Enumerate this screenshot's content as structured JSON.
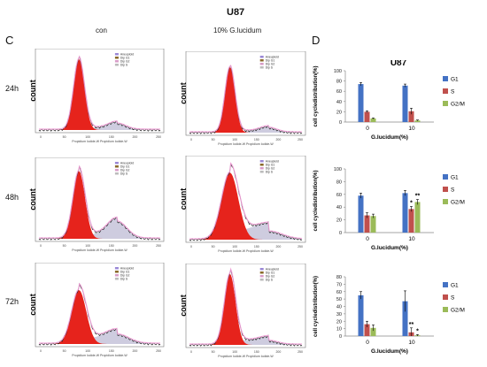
{
  "figure": {
    "title": "U87",
    "panel_c_label": "C",
    "panel_d_label": "D",
    "col_labels": [
      "con",
      "10% G.lucidum"
    ],
    "row_labels": [
      "24h",
      "48h",
      "72h"
    ],
    "flow_ylabel": "count",
    "flow_xlabel": "Propidium Iodide-W  Propidium Iodide-W",
    "flow_xticks": [
      "0",
      "50",
      "100",
      "150",
      "200",
      "250"
    ],
    "flow_legend": [
      "Aneuploid",
      "Dip G1",
      "Dip G2",
      "Dip S"
    ],
    "colors": {
      "red": "#e6231c",
      "pink": "#f2a0d8",
      "bar_blue": "#4472c4",
      "bar_red": "#c0504d",
      "bar_green": "#9bbb59"
    }
  },
  "chart_data": [
    {
      "type": "bar",
      "title": "U87",
      "categories": [
        "0",
        "10"
      ],
      "series": [
        {
          "name": "G1",
          "values": [
            74,
            71
          ]
        },
        {
          "name": "S",
          "values": [
            20,
            21
          ]
        },
        {
          "name": "G2/M",
          "values": [
            7,
            3
          ]
        }
      ],
      "errors": [
        [
          3,
          3
        ],
        [
          2,
          6
        ],
        [
          1,
          1
        ]
      ],
      "annotations": [],
      "xlabel": "G.lucidum(%)",
      "ylabel": "cell cycledistribution(%)",
      "ylim": [
        0,
        100
      ],
      "yticks": [
        0,
        20,
        40,
        60,
        80,
        100
      ],
      "legend": "right"
    },
    {
      "type": "bar",
      "title": "",
      "categories": [
        "0",
        "10"
      ],
      "series": [
        {
          "name": "G1",
          "values": [
            58,
            62
          ]
        },
        {
          "name": "S",
          "values": [
            27,
            37
          ]
        },
        {
          "name": "G2/M",
          "values": [
            26,
            48
          ]
        }
      ],
      "errors": [
        [
          4,
          4
        ],
        [
          4,
          4
        ],
        [
          3,
          4
        ]
      ],
      "annotations": [
        {
          "category": "10",
          "series": "S",
          "text": "*"
        },
        {
          "category": "10",
          "series": "G2/M",
          "text": "**"
        }
      ],
      "xlabel": "G.lucidum(%)",
      "ylabel": "cell cycledistribution(%)",
      "ylim": [
        0,
        100
      ],
      "yticks": [
        0,
        20,
        40,
        60,
        80,
        100
      ],
      "legend": "right"
    },
    {
      "type": "bar",
      "title": "",
      "categories": [
        "0",
        "10"
      ],
      "series": [
        {
          "name": "G1",
          "values": [
            55,
            47
          ]
        },
        {
          "name": "S",
          "values": [
            16,
            5
          ]
        },
        {
          "name": "G2/M",
          "values": [
            11,
            1
          ]
        }
      ],
      "errors": [
        [
          5,
          14
        ],
        [
          4,
          6
        ],
        [
          4,
          1
        ]
      ],
      "annotations": [
        {
          "category": "10",
          "series": "S",
          "text": "**"
        },
        {
          "category": "10",
          "series": "G2/M",
          "text": "*"
        }
      ],
      "xlabel": "G.lucidum(%)",
      "ylabel": "cell cycledistribution(%)",
      "ylim": [
        0,
        80
      ],
      "yticks": [
        0,
        10,
        20,
        30,
        40,
        50,
        60,
        70,
        80
      ],
      "legend": "right"
    }
  ]
}
